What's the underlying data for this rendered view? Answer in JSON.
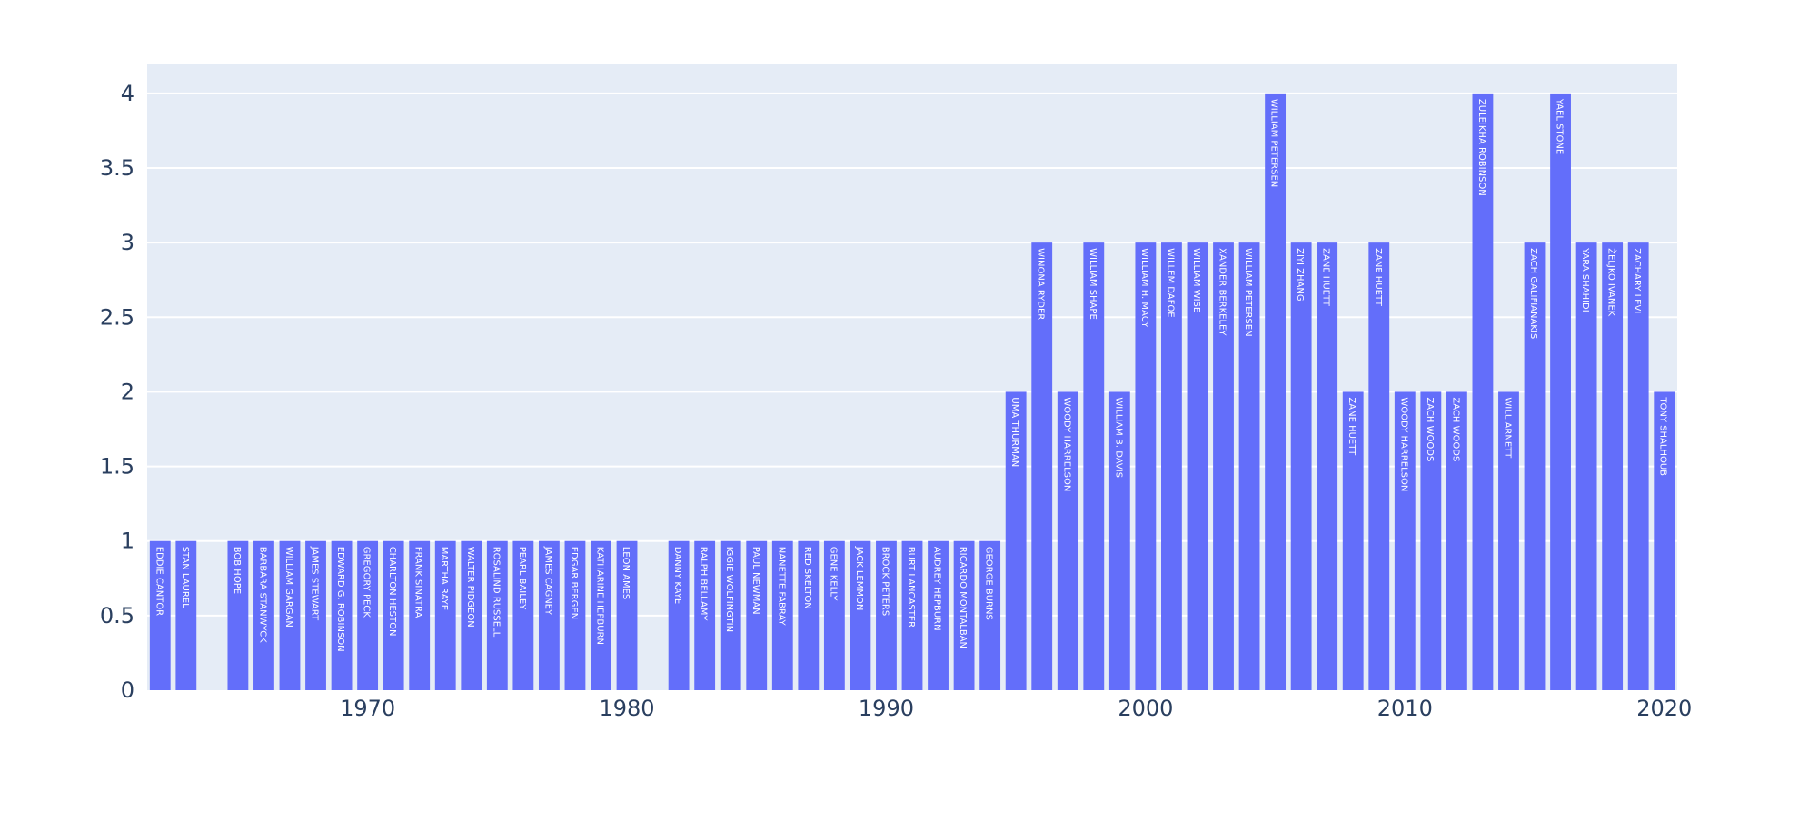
{
  "chart_data": {
    "type": "bar",
    "title": "",
    "xlabel": "",
    "ylabel": "",
    "ylim": [
      0,
      4.2
    ],
    "xlim": [
      1961.5,
      2020.5
    ],
    "y_ticks": [
      0,
      0.5,
      1,
      1.5,
      2,
      2.5,
      3,
      3.5,
      4
    ],
    "y_tick_labels": [
      "0",
      "0.5",
      "1",
      "1.5",
      "2",
      "2.5",
      "3",
      "3.5",
      "4"
    ],
    "x_ticks": [
      1970,
      1980,
      1990,
      2000,
      2010,
      2020
    ],
    "x_tick_labels": [
      "1970",
      "1980",
      "1990",
      "2000",
      "2010",
      "2020"
    ],
    "grid": true,
    "colors": {
      "bar": "#636efa",
      "plot_bg": "#e5ecf6",
      "grid": "#ffffff",
      "tick_text": "#2a3f5f",
      "bar_text": "#ffffff"
    },
    "bars": [
      {
        "x": 1962,
        "value": 1,
        "label": "EDDIE CANTOR"
      },
      {
        "x": 1963,
        "value": 1,
        "label": "STAN LAUREL"
      },
      {
        "x": 1965,
        "value": 1,
        "label": "BOB HOPE"
      },
      {
        "x": 1966,
        "value": 1,
        "label": "BARBARA STANWYCK"
      },
      {
        "x": 1967,
        "value": 1,
        "label": "WILLIAM GARGAN"
      },
      {
        "x": 1968,
        "value": 1,
        "label": "JAMES STEWART"
      },
      {
        "x": 1969,
        "value": 1,
        "label": "EDWARD G. ROBINSON"
      },
      {
        "x": 1970,
        "value": 1,
        "label": "GREGORY PECK"
      },
      {
        "x": 1971,
        "value": 1,
        "label": "CHARLTON HESTON"
      },
      {
        "x": 1972,
        "value": 1,
        "label": "FRANK SINATRA"
      },
      {
        "x": 1973,
        "value": 1,
        "label": "MARTHA RAYE"
      },
      {
        "x": 1974,
        "value": 1,
        "label": "WALTER PIDGEON"
      },
      {
        "x": 1975,
        "value": 1,
        "label": "ROSALIND RUSSELL"
      },
      {
        "x": 1976,
        "value": 1,
        "label": "PEARL BAILEY"
      },
      {
        "x": 1977,
        "value": 1,
        "label": "JAMES CAGNEY"
      },
      {
        "x": 1978,
        "value": 1,
        "label": "EDGAR BERGEN"
      },
      {
        "x": 1979,
        "value": 1,
        "label": "KATHARINE HEPBURN"
      },
      {
        "x": 1980,
        "value": 1,
        "label": "LEON AMES"
      },
      {
        "x": 1982,
        "value": 1,
        "label": "DANNY KAYE"
      },
      {
        "x": 1983,
        "value": 1,
        "label": "RALPH BELLAMY"
      },
      {
        "x": 1984,
        "value": 1,
        "label": "IGGIE WOLFINGTIN"
      },
      {
        "x": 1985,
        "value": 1,
        "label": "PAUL NEWMAN"
      },
      {
        "x": 1986,
        "value": 1,
        "label": "NANETTE FABRAY"
      },
      {
        "x": 1987,
        "value": 1,
        "label": "RED SKELTON"
      },
      {
        "x": 1988,
        "value": 1,
        "label": "GENE KELLY"
      },
      {
        "x": 1989,
        "value": 1,
        "label": "JACK LEMMON"
      },
      {
        "x": 1990,
        "value": 1,
        "label": "BROCK PETERS"
      },
      {
        "x": 1991,
        "value": 1,
        "label": "BURT LANCASTER"
      },
      {
        "x": 1992,
        "value": 1,
        "label": "AUDREY HEPBURN"
      },
      {
        "x": 1993,
        "value": 1,
        "label": "RICARDO MONTALBAN"
      },
      {
        "x": 1994,
        "value": 1,
        "label": "GEORGE BURNS"
      },
      {
        "x": 1995,
        "value": 2,
        "label": "UMA THURMAN"
      },
      {
        "x": 1996,
        "value": 3,
        "label": "WINONA RYDER"
      },
      {
        "x": 1997,
        "value": 2,
        "label": "WOODY HARRELSON"
      },
      {
        "x": 1998,
        "value": 3,
        "label": "WILLIAM SHAPE"
      },
      {
        "x": 1999,
        "value": 2,
        "label": "WILLIAM B. DAVIS"
      },
      {
        "x": 2000,
        "value": 3,
        "label": "WILLIAM H. MACY"
      },
      {
        "x": 2001,
        "value": 3,
        "label": "WILLEM DAFOE"
      },
      {
        "x": 2002,
        "value": 3,
        "label": "WILLIAM WISE"
      },
      {
        "x": 2003,
        "value": 3,
        "label": "XANDER BERKELEY"
      },
      {
        "x": 2004,
        "value": 3,
        "label": "WILLIAM PETERSEN"
      },
      {
        "x": 2005,
        "value": 4,
        "label": "WILLIAM PETERSEN"
      },
      {
        "x": 2006,
        "value": 3,
        "label": "ZIYI ZHANG"
      },
      {
        "x": 2007,
        "value": 3,
        "label": "ZANE HUETT"
      },
      {
        "x": 2008,
        "value": 2,
        "label": "ZANE HUETT"
      },
      {
        "x": 2009,
        "value": 3,
        "label": "ZANE HUETT"
      },
      {
        "x": 2010,
        "value": 2,
        "label": "WOODY HARRELSON"
      },
      {
        "x": 2011,
        "value": 2,
        "label": "ZACH WOODS"
      },
      {
        "x": 2012,
        "value": 2,
        "label": "ZACH WOODS"
      },
      {
        "x": 2013,
        "value": 4,
        "label": "ZULEIKHA ROBINSON"
      },
      {
        "x": 2014,
        "value": 2,
        "label": "WILL ARNETT"
      },
      {
        "x": 2015,
        "value": 3,
        "label": "ZACH GALIFIANAKIS"
      },
      {
        "x": 2016,
        "value": 4,
        "label": "YAEL STONE"
      },
      {
        "x": 2017,
        "value": 3,
        "label": "YARA SHAHIDI"
      },
      {
        "x": 2018,
        "value": 3,
        "label": "ŽELJKO IVANEK"
      },
      {
        "x": 2019,
        "value": 3,
        "label": "ZACHARY LEVI"
      },
      {
        "x": 2020,
        "value": 2,
        "label": "TONY SHALHOUB"
      }
    ]
  }
}
